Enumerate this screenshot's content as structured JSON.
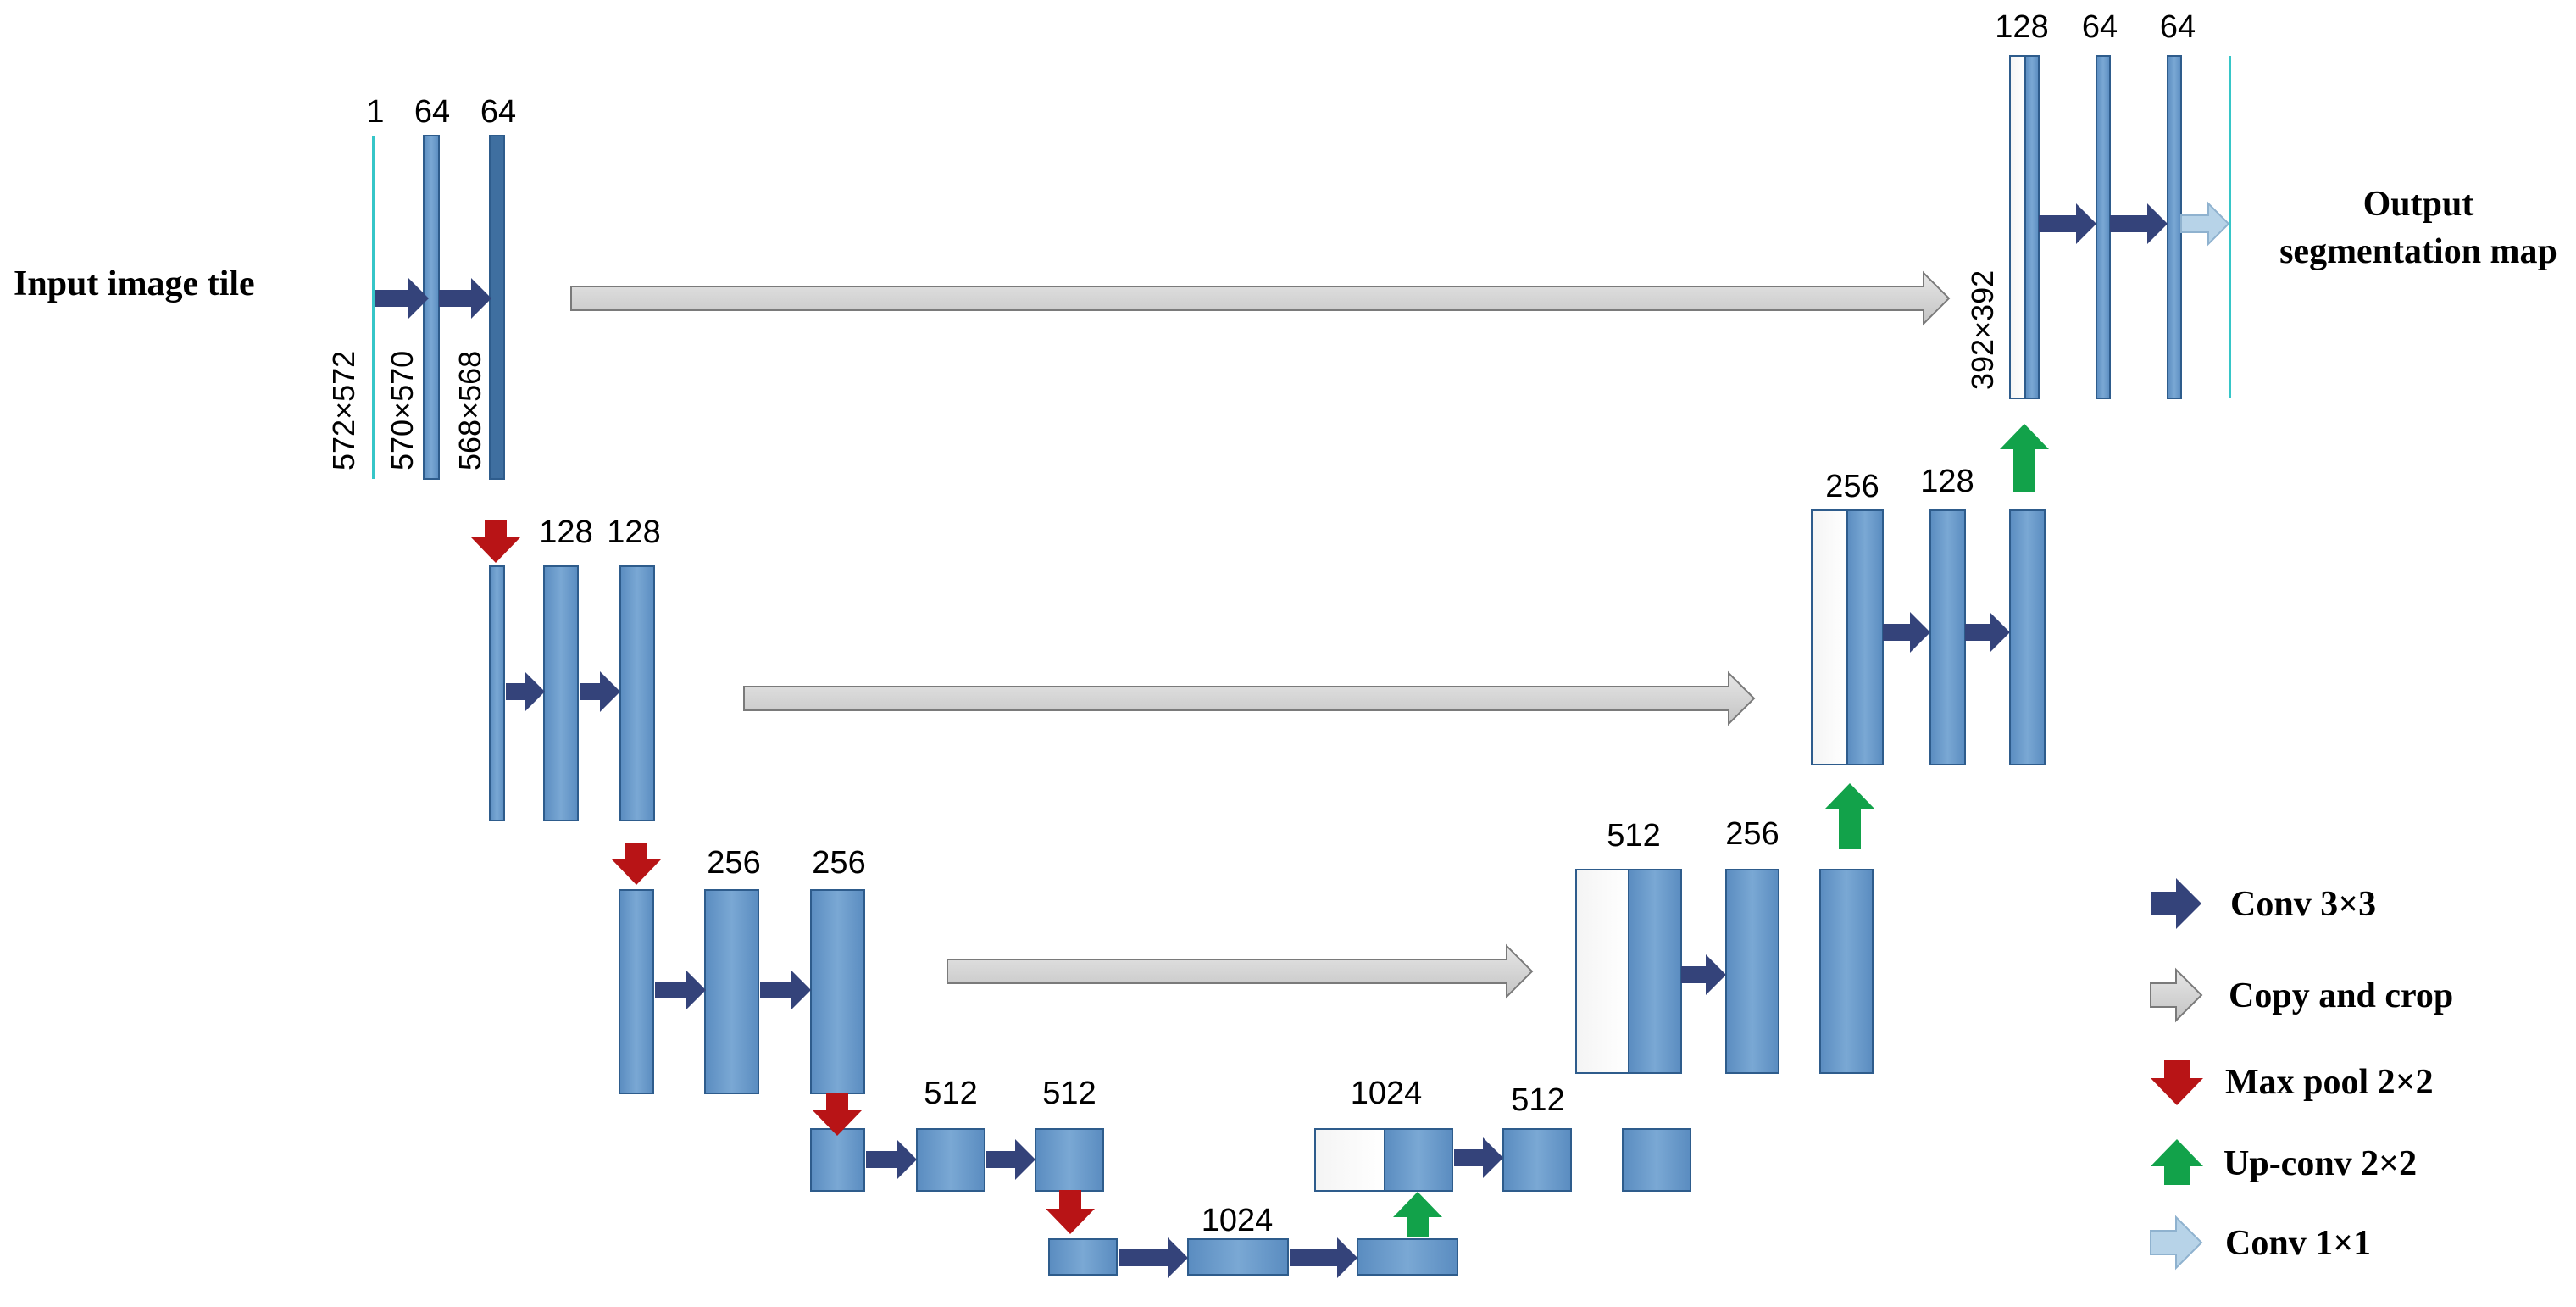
{
  "labels": {
    "input": "Input image tile",
    "output_line1": "Output",
    "output_line2": "segmentation map"
  },
  "channels": {
    "l1": [
      "1",
      "64",
      "64"
    ],
    "l2": [
      "128",
      "128"
    ],
    "l3": [
      "256",
      "256"
    ],
    "l4": [
      "512",
      "512"
    ],
    "l5": [
      "1024"
    ],
    "r4": [
      "1024",
      "512"
    ],
    "r3": [
      "512",
      "256"
    ],
    "r2": [
      "256",
      "128"
    ],
    "r1": [
      "128",
      "64",
      "64"
    ]
  },
  "sizes": {
    "l1": [
      "572×572",
      "570×570",
      "568×568"
    ],
    "r1": "392×392"
  },
  "legend": [
    {
      "icon": "conv-arrow",
      "label": "Conv 3×3"
    },
    {
      "icon": "copy-arrow",
      "label": "Copy and crop"
    },
    {
      "icon": "pool-arrow",
      "label": "Max pool 2×2"
    },
    {
      "icon": "upconv-arrow",
      "label": "Up-conv 2×2"
    },
    {
      "icon": "conv1-arrow",
      "label": "Conv 1×1"
    }
  ],
  "colors": {
    "block": "#6d9ccb",
    "conv_arrow": "#34437a",
    "copy_arrow": "#d0d0d0",
    "pool_arrow": "#b81416",
    "upconv_arrow": "#12a24a",
    "conv1_arrow": "#b7d3e8"
  }
}
